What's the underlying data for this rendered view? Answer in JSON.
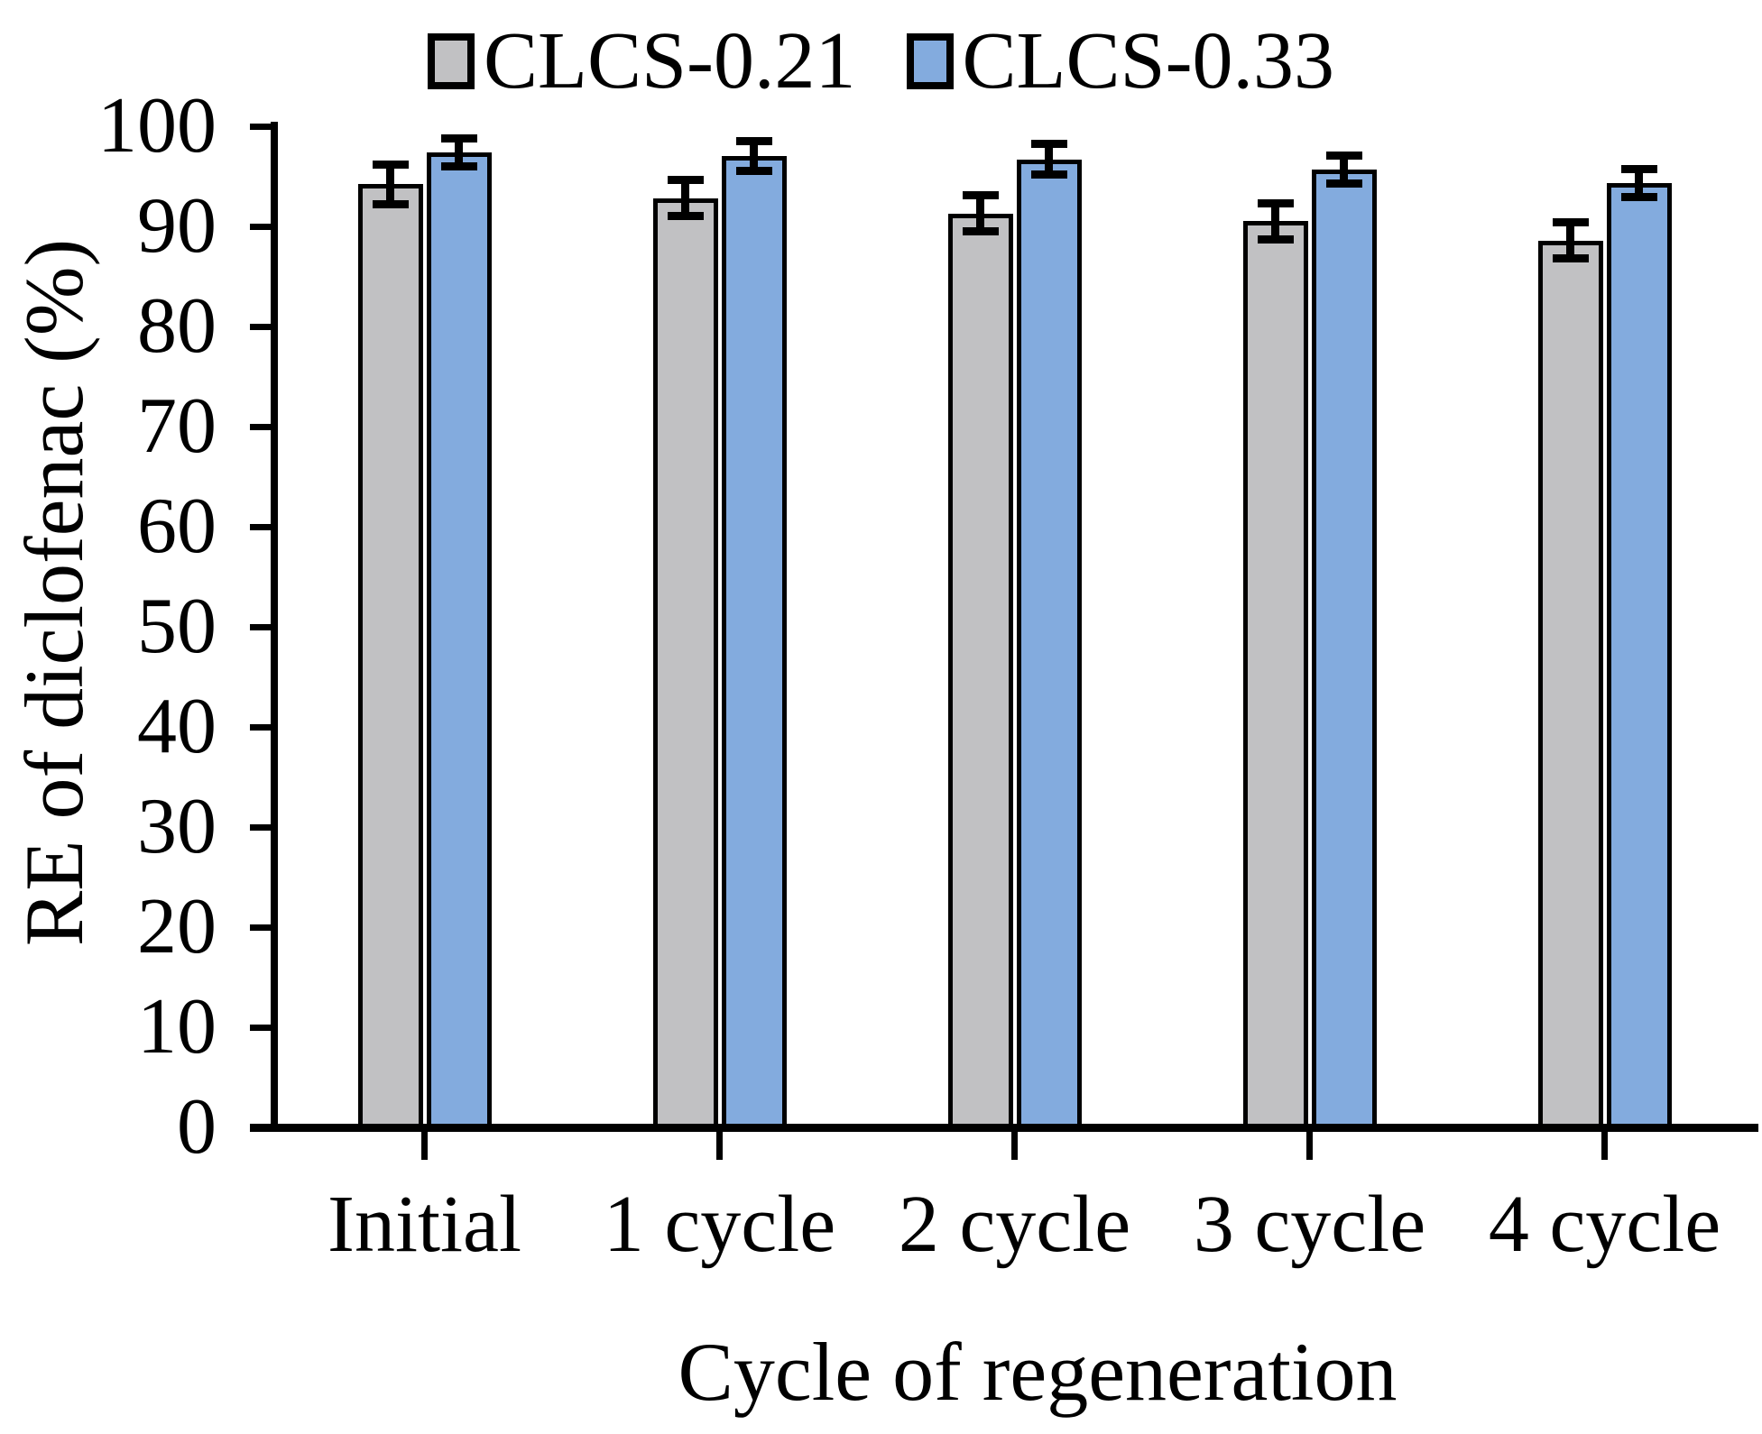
{
  "chart_data": {
    "type": "bar",
    "title": "",
    "categories": [
      "Initial",
      "1 cycle",
      "2 cycle",
      "3 cycle",
      "4 cycle"
    ],
    "series": [
      {
        "name": "CLCS-0.21",
        "color": "#c1c1c3",
        "values": [
          94.2,
          92.8,
          91.3,
          90.5,
          88.6
        ],
        "errors": [
          2.0,
          1.8,
          1.8,
          1.8,
          1.8
        ]
      },
      {
        "name": "CLCS-0.33",
        "color": "#83abde",
        "values": [
          97.4,
          97.0,
          96.7,
          95.7,
          94.3
        ],
        "errors": [
          1.4,
          1.5,
          1.5,
          1.4,
          1.4
        ]
      }
    ],
    "xlabel": "Cycle of regeneration",
    "ylabel": "RE of diclofenac (%)",
    "ylim": [
      0,
      100
    ],
    "ytick_step": 10,
    "grid": false,
    "legend_position": "top",
    "error_bars": true,
    "bar_border_color": "#000000",
    "axis_color": "#000000"
  }
}
